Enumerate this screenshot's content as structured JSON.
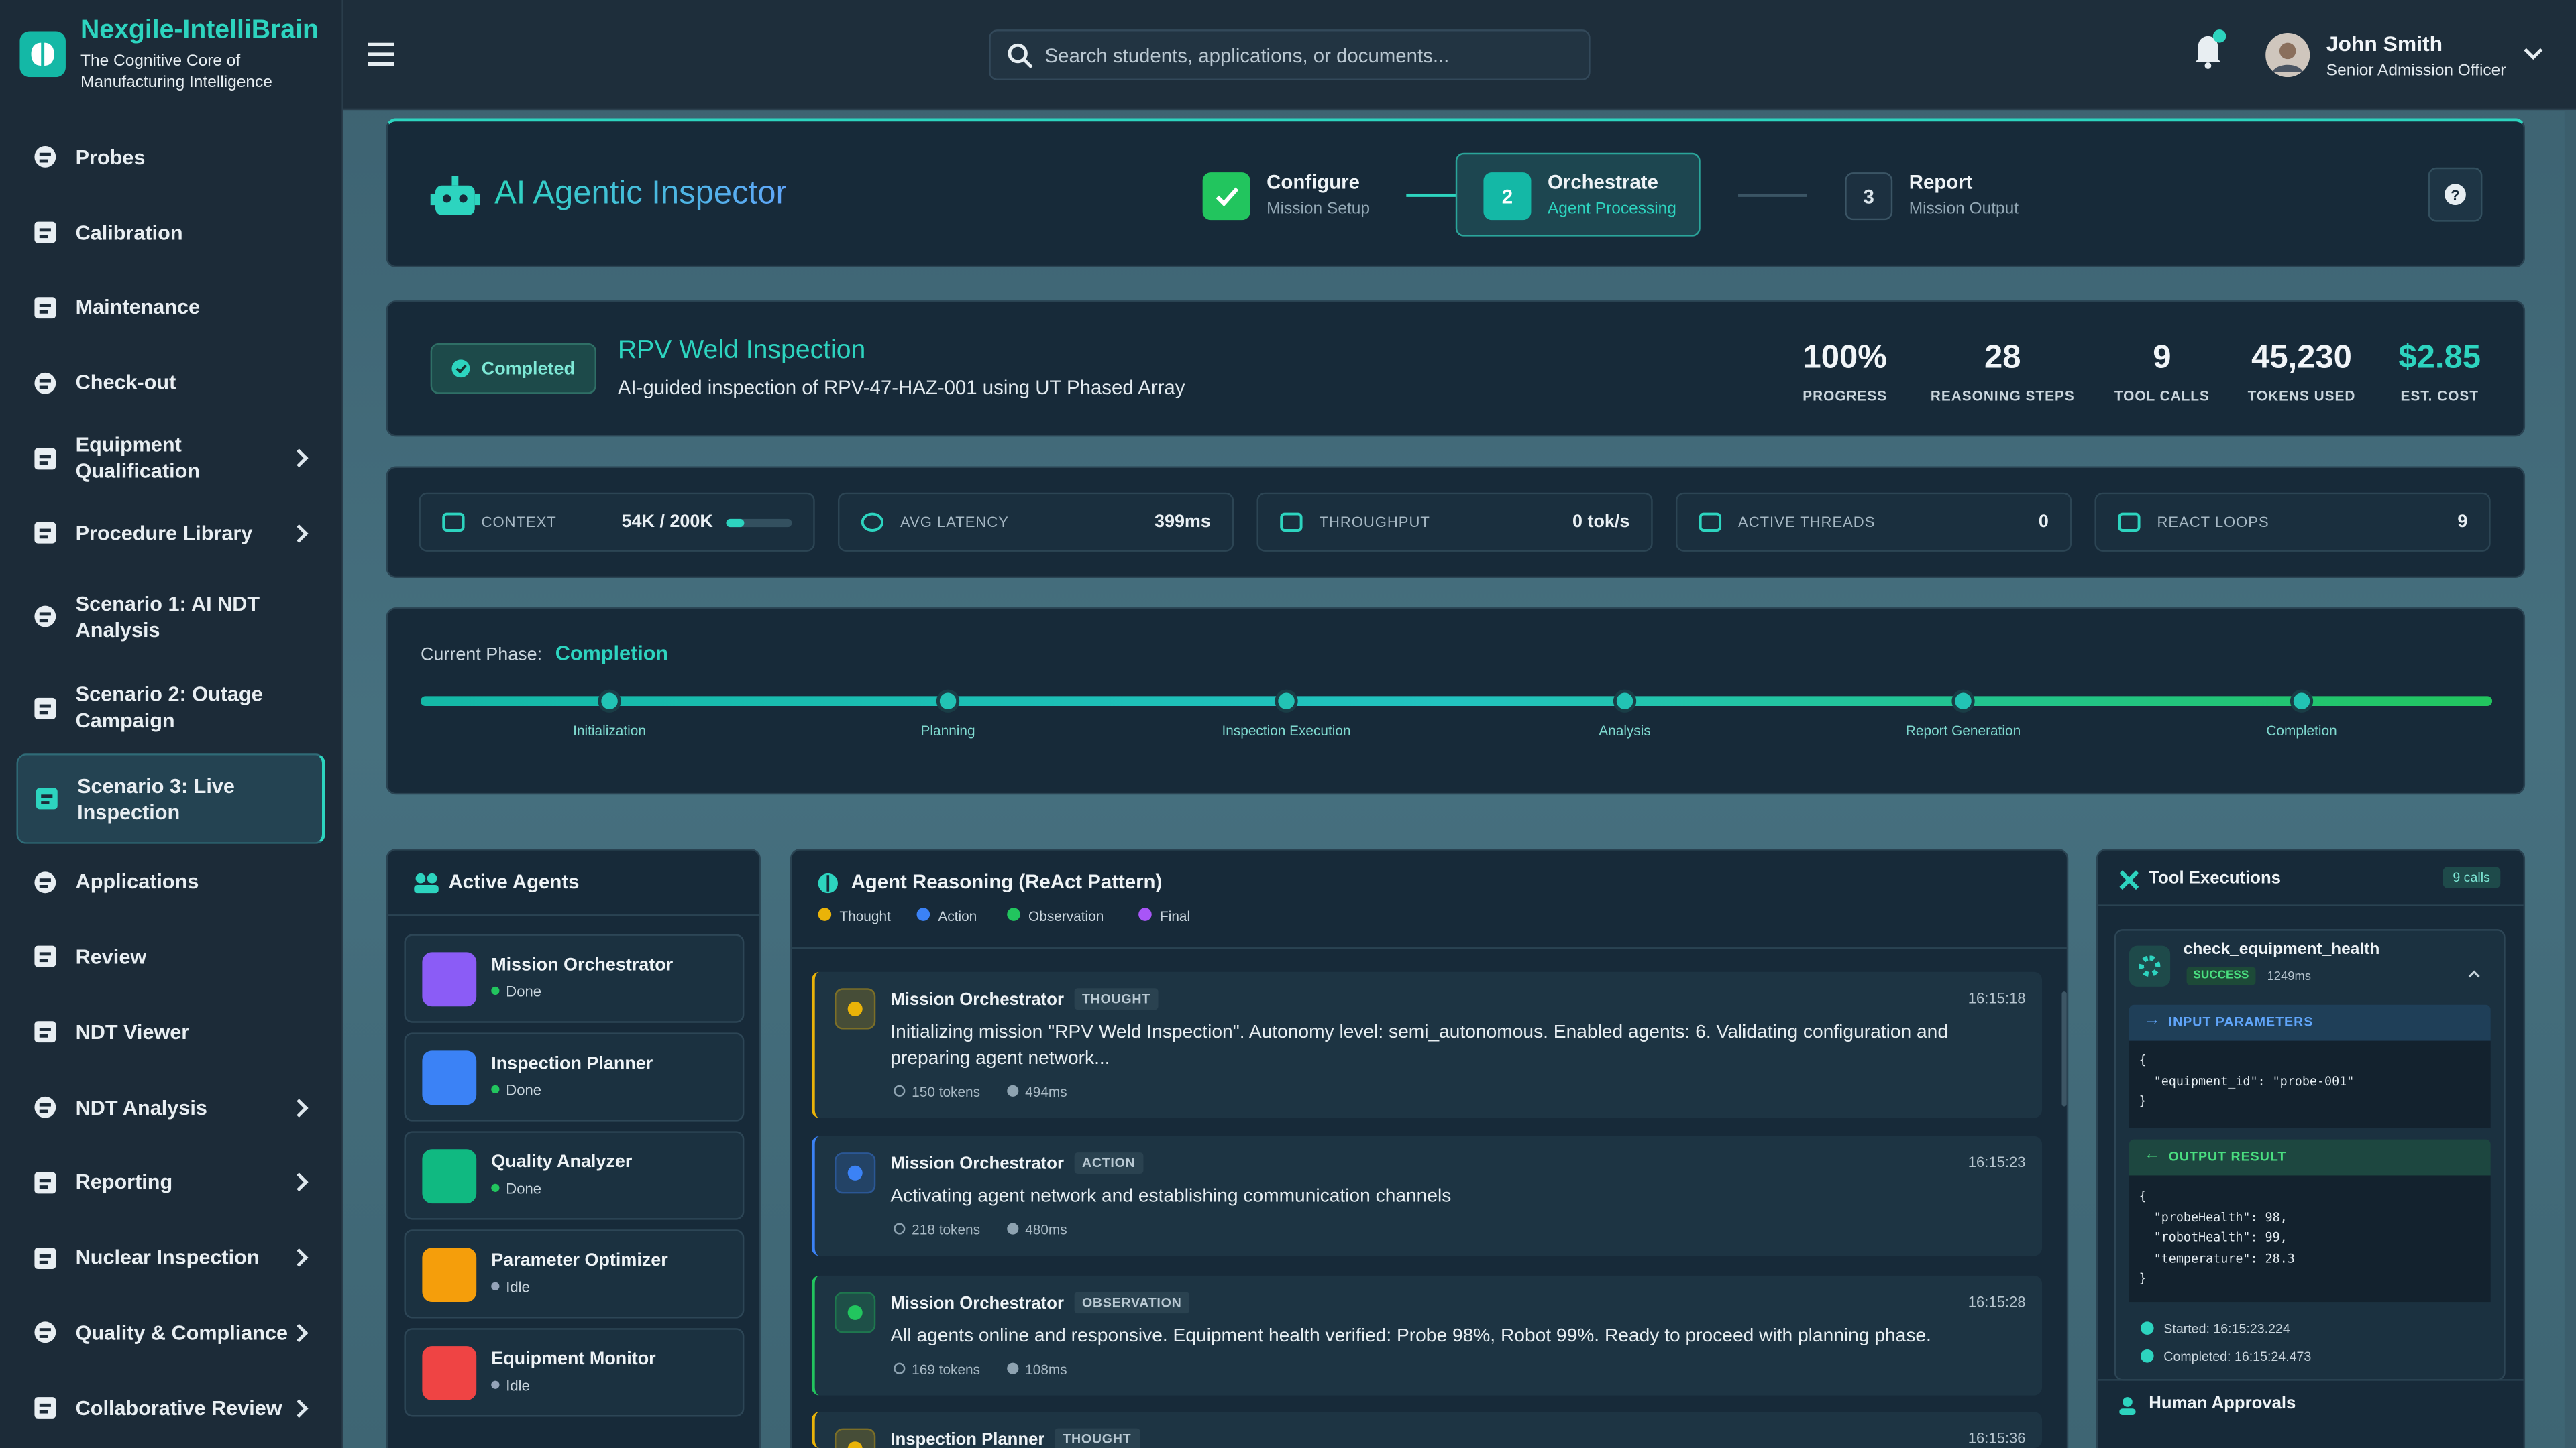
{
  "brand": {
    "name": "Nexgile-IntelliBrain",
    "tagline": "The Cognitive Core of Manufacturing Intelligence"
  },
  "nav": [
    {
      "label": "Probes"
    },
    {
      "label": "Calibration"
    },
    {
      "label": "Maintenance"
    },
    {
      "label": "Check-out"
    },
    {
      "label": "Equipment Qualification",
      "submenu": true
    },
    {
      "label": "Procedure Library",
      "submenu": true
    },
    {
      "label": "Scenario 1: AI NDT Analysis"
    },
    {
      "label": "Scenario 2: Outage Campaign"
    },
    {
      "label": "Scenario 3: Live Inspection",
      "active": true
    },
    {
      "label": "Applications"
    },
    {
      "label": "Review"
    },
    {
      "label": "NDT Viewer"
    },
    {
      "label": "NDT Analysis",
      "submenu": true
    },
    {
      "label": "Reporting",
      "submenu": true
    },
    {
      "label": "Nuclear Inspection",
      "submenu": true
    },
    {
      "label": "Quality & Compliance",
      "submenu": true
    },
    {
      "label": "Collaborative Review",
      "submenu": true
    }
  ],
  "search": {
    "placeholder": "Search students, applications, or documents..."
  },
  "user": {
    "name": "John Smith",
    "role": "Senior Admission Officer"
  },
  "inspector": {
    "title": "AI Agentic Inspector",
    "steps": [
      {
        "title": "Configure",
        "subtitle": "Mission Setup",
        "status": "done"
      },
      {
        "number": 2,
        "title": "Orchestrate",
        "subtitle": "Agent Processing",
        "status": "active"
      },
      {
        "number": 3,
        "title": "Report",
        "subtitle": "Mission Output",
        "status": "pending"
      }
    ]
  },
  "mission": {
    "status": "Completed",
    "title": "RPV Weld Inspection",
    "description": "AI-guided inspection of RPV-47-HAZ-001 using UT Phased Array",
    "stats": [
      {
        "value": "100%",
        "label": "PROGRESS"
      },
      {
        "value": 28,
        "label": "REASONING STEPS"
      },
      {
        "value": 9,
        "label": "TOOL CALLS"
      },
      {
        "value": "45,230",
        "label": "TOKENS USED"
      },
      {
        "value": "$2.85",
        "label": "EST. COST",
        "highlight": true
      }
    ]
  },
  "metrics": [
    {
      "label": "CONTEXT",
      "value": "54K / 200K",
      "progress": 27
    },
    {
      "label": "AVG LATENCY",
      "value": "399ms"
    },
    {
      "label": "THROUGHPUT",
      "value": "0 tok/s"
    },
    {
      "label": "ACTIVE THREADS",
      "value": 0
    },
    {
      "label": "REACT LOOPS",
      "value": 9
    }
  ],
  "phase": {
    "label": "Current Phase:",
    "current": "Completion",
    "steps": [
      "Initialization",
      "Planning",
      "Inspection Execution",
      "Analysis",
      "Report Generation",
      "Completion"
    ]
  },
  "agents": {
    "title": "Active Agents",
    "items": [
      {
        "name": "Mission Orchestrator",
        "status": "Done",
        "color": "#8b5cf6"
      },
      {
        "name": "Inspection Planner",
        "status": "Done",
        "color": "#3b82f6"
      },
      {
        "name": "Quality Analyzer",
        "status": "Done",
        "color": "#10b981"
      },
      {
        "name": "Parameter Optimizer",
        "status": "Idle",
        "color": "#f59e0b"
      },
      {
        "name": "Equipment Monitor",
        "status": "Idle",
        "color": "#ef4444"
      }
    ]
  },
  "reasoning": {
    "title": "Agent Reasoning (ReAct Pattern)",
    "legend": [
      {
        "label": "Thought",
        "color": "#eab308"
      },
      {
        "label": "Action",
        "color": "#3b82f6"
      },
      {
        "label": "Observation",
        "color": "#22c55e"
      },
      {
        "label": "Final",
        "color": "#a855f7"
      }
    ],
    "entries": [
      {
        "agent": "Mission Orchestrator",
        "type": "THOUGHT",
        "color": "#eab308",
        "time": "16:15:18",
        "text": "Initializing mission \"RPV Weld Inspection\". Autonomy level: semi_autonomous. Enabled agents: 6. Validating configuration and preparing agent network...",
        "tokens": "150 tokens",
        "duration": "494ms"
      },
      {
        "agent": "Mission Orchestrator",
        "type": "ACTION",
        "color": "#3b82f6",
        "time": "16:15:23",
        "text": "Activating agent network and establishing communication channels",
        "tokens": "218 tokens",
        "duration": "480ms"
      },
      {
        "agent": "Mission Orchestrator",
        "type": "OBSERVATION",
        "color": "#22c55e",
        "time": "16:15:28",
        "text": "All agents online and responsive. Equipment health verified: Probe 98%, Robot 99%. Ready to proceed with planning phase.",
        "tokens": "169 tokens",
        "duration": "108ms"
      },
      {
        "agent": "Inspection Planner",
        "type": "THOUGHT",
        "color": "#eab308",
        "time": "16:15:36"
      }
    ]
  },
  "tools": {
    "title": "Tool Executions",
    "count": "9 calls",
    "items": [
      {
        "name": "check_equipment_health",
        "status": "SUCCESS",
        "duration": "1249ms",
        "input_label": "INPUT PARAMETERS",
        "input": "{\n  \"equipment_id\": \"probe-001\"\n}",
        "output_label": "OUTPUT RESULT",
        "output": "{\n  \"probeHealth\": 98,\n  \"robotHealth\": 99,\n  \"temperature\": 28.3\n}",
        "started": "Started: 16:15:23.224",
        "completed": "Completed: 16:15:24.473"
      }
    ],
    "approvals_title": "Human Approvals"
  }
}
